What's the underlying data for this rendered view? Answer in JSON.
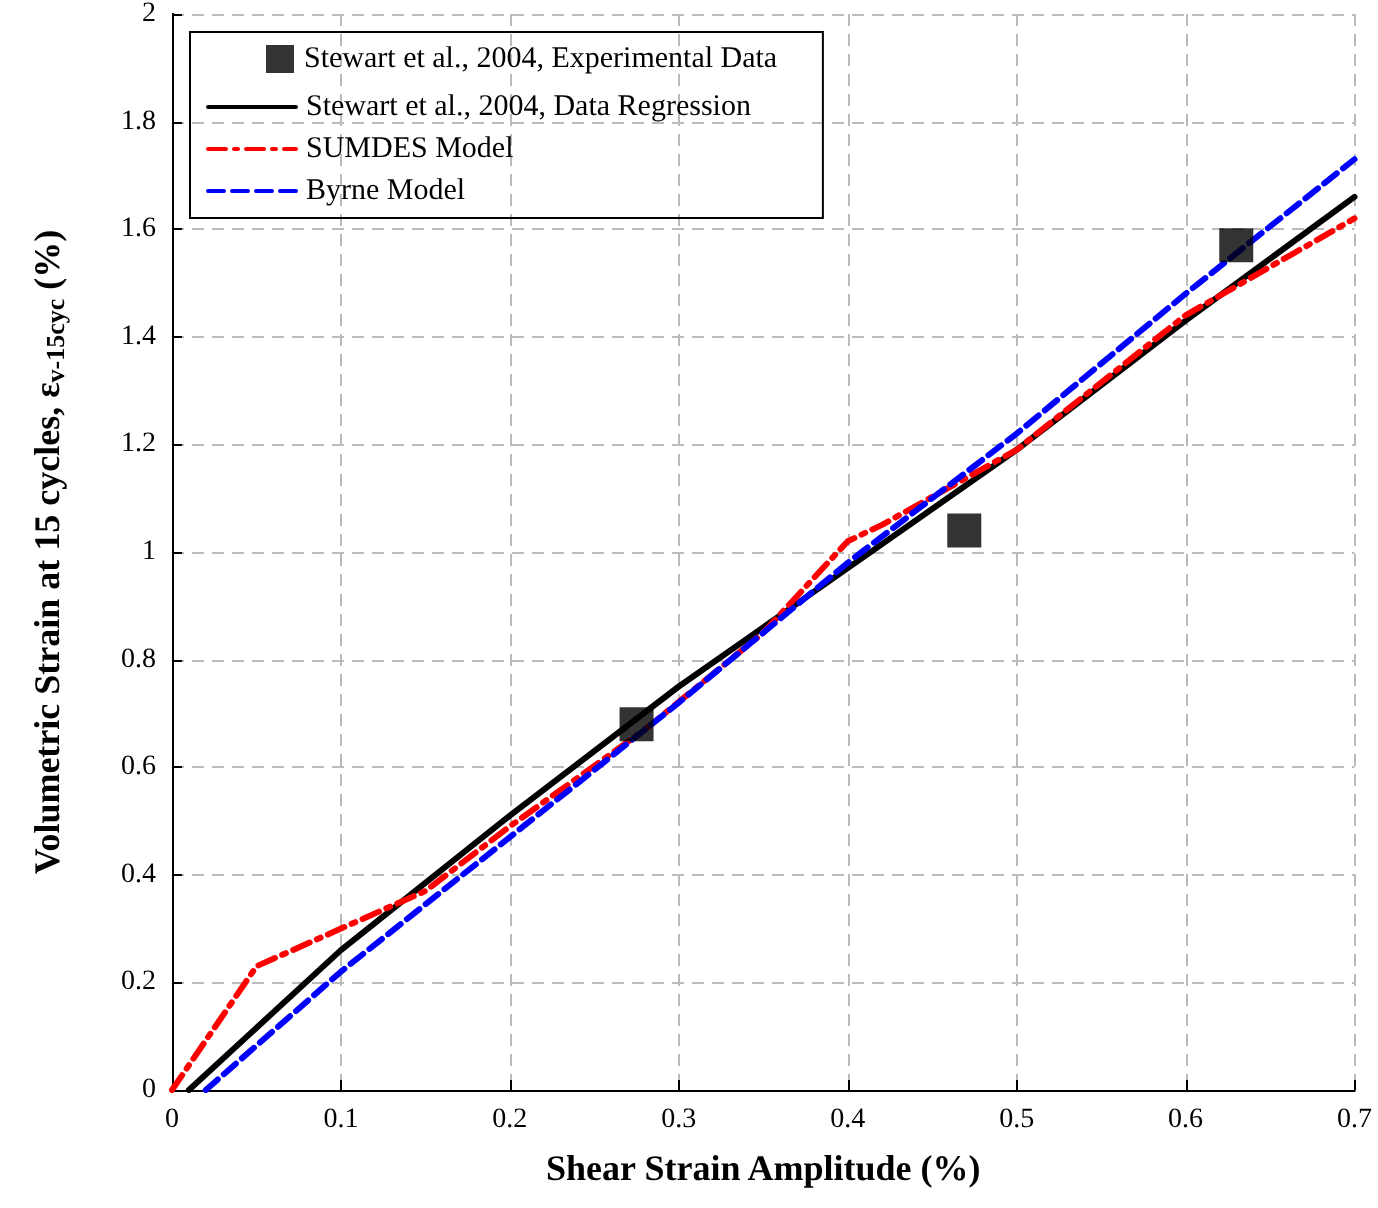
{
  "chart_data": {
    "type": "line",
    "xlabel": "Shear Strain Amplitude (%)",
    "ylabel": "Volumetric Strain at 15 cycles, ε$_{v-15cyc}$ (%)",
    "xlim": [
      0,
      0.7
    ],
    "xticks": [
      0,
      0.1,
      0.2,
      0.3,
      0.4,
      0.5,
      0.6,
      0.7
    ],
    "ylim": [
      0,
      2
    ],
    "yticks": [
      0,
      0.2,
      0.4,
      0.6,
      0.8,
      1,
      1.2,
      1.4,
      1.6,
      1.8,
      2
    ],
    "grid": true,
    "legend": "top left",
    "series": [
      {
        "name": "Stewart et al., 2004, Experimental Data",
        "type": "scatter",
        "marker": "square",
        "color": "#000000",
        "x": [
          0.275,
          0.469,
          0.63
        ],
        "values": [
          0.68,
          1.04,
          1.57
        ]
      },
      {
        "name": "Stewart et al., 2004, Data Regression",
        "line_style": "solid",
        "color": "#000000",
        "x": [
          0.01,
          0.1,
          0.2,
          0.3,
          0.4,
          0.5,
          0.6,
          0.7
        ],
        "values": [
          0,
          0.26,
          0.51,
          0.75,
          0.97,
          1.19,
          1.43,
          1.66
        ]
      },
      {
        "name": "SUMDES Model",
        "line_style": "dashdot",
        "color": "#ff0000",
        "x": [
          0,
          0.05,
          0.1,
          0.15,
          0.2,
          0.28,
          0.35,
          0.4,
          0.42,
          0.5,
          0.6,
          0.65,
          0.7
        ],
        "values": [
          0,
          0.23,
          0.3,
          0.37,
          0.49,
          0.67,
          0.85,
          1.02,
          1.05,
          1.19,
          1.44,
          1.53,
          1.62
        ]
      },
      {
        "name": "Byrne Model",
        "line_style": "dashed",
        "color": "#0000ff",
        "x": [
          0.02,
          0.1,
          0.2,
          0.3,
          0.4,
          0.5,
          0.6,
          0.7
        ],
        "values": [
          0,
          0.22,
          0.47,
          0.72,
          0.98,
          1.22,
          1.48,
          1.73
        ]
      }
    ]
  }
}
